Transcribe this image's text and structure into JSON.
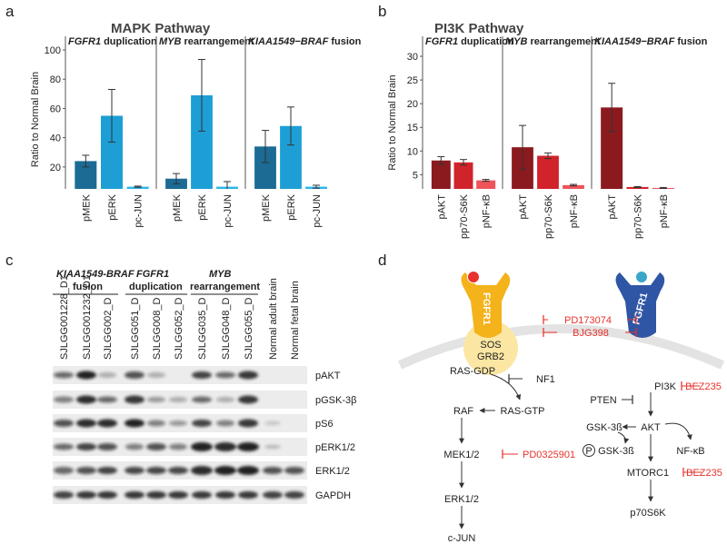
{
  "panel_labels": [
    "a",
    "b",
    "c",
    "d"
  ],
  "chart_data": [
    {
      "type": "bar",
      "title": "MAPK Pathway",
      "y_label": "Ratio to Normal Brain",
      "ylim": [
        5,
        100
      ],
      "yticks": [
        20,
        40,
        60,
        80,
        100
      ],
      "categories": [
        "pMEK",
        "pERK",
        "pc-JUN"
      ],
      "colors": [
        "#1b6b94",
        "#1d9fd6",
        "#2cb5ea"
      ],
      "series": [
        {
          "gene": "FGFR1",
          "name": "duplication",
          "values": [
            24,
            55,
            6.5
          ],
          "errors": [
            4,
            18,
            0.4
          ]
        },
        {
          "gene": "MYB",
          "name": "rearrangement",
          "values": [
            12,
            69,
            6.5
          ],
          "errors": [
            3.5,
            24.5,
            3.5
          ]
        },
        {
          "gene": "KIAA1549−BRAF",
          "name": "fusion",
          "values": [
            34,
            48,
            6.5
          ],
          "errors": [
            11,
            13,
            1
          ]
        }
      ]
    },
    {
      "type": "bar",
      "title": "PI3K Pathway",
      "y_label": "Ratio to Normal Brain",
      "ylim": [
        2,
        30
      ],
      "yticks": [
        5,
        10,
        15,
        20,
        25,
        30
      ],
      "categories": [
        "pAKT",
        "pp70-S6K",
        "pNF-κB"
      ],
      "colors": [
        "#8b1a1f",
        "#d1232a",
        "#ee5459"
      ],
      "series": [
        {
          "gene": "FGFR1",
          "name": "duplication",
          "values": [
            8,
            7.6,
            3.8
          ],
          "errors": [
            0.8,
            0.6,
            0.2
          ]
        },
        {
          "gene": "MYB",
          "name": "rearrangement",
          "values": [
            10.8,
            9,
            2.8
          ],
          "errors": [
            4.6,
            0.6,
            0.15
          ]
        },
        {
          "gene": "KIAA1549−BRAF",
          "name": "fusion",
          "values": [
            19.2,
            2.4,
            2.2
          ],
          "errors": [
            5.1,
            0.1,
            0.1
          ]
        }
      ]
    }
  ],
  "blot": {
    "groups": [
      {
        "gene": "KIAA1549-BRAF",
        "label": "fusion"
      },
      {
        "gene": "FGFR1",
        "label": "duplication"
      },
      {
        "gene": "MYB",
        "label": "rearrangement"
      }
    ],
    "samples": [
      "SJLGG001228_D1",
      "SJLGG001232_D1",
      "SJLGG002_D",
      "SJLGG051_D",
      "SJLGG008_D",
      "SJLGG052_D",
      "SJLGG035_D",
      "SJLGG048_D",
      "SJLGG055_D",
      "Normal adult brain",
      "Normal fetal brain"
    ],
    "rows": [
      "pAKT",
      "pGSK-3β",
      "pS6",
      "pERK1/2",
      "ERK1/2",
      "GAPDH"
    ]
  },
  "diagram": {
    "left_receptor": "FGFR1",
    "right_receptor": "FGFR1",
    "adaptors": [
      "SOS",
      "GRB2"
    ],
    "receptor_inhibitors": [
      "PD173074",
      "BJG398"
    ],
    "mapk": {
      "ras_gdp": "RAS-GDP",
      "nf1": "NF1",
      "raf": "RAF",
      "ras_gtp": "RAS-GTP",
      "mek": "MEK1/2",
      "mek_inhibitor": "PD0325901",
      "erk": "ERK1/2",
      "cjun": "c-JUN"
    },
    "pi3k": {
      "pi3k": "PI3K",
      "pi3k_inhibitor": "BEZ235",
      "pten": "PTEN",
      "gsk": "GSK-3ß",
      "akt": "AKT",
      "phospho": "P",
      "pgsk": "GSK-3ß",
      "nfkb": "NF-κB",
      "mtorc1": "MTORC1",
      "mtorc1_inhibitor": "BEZ235",
      "p70s6k": "p70S6K"
    }
  }
}
